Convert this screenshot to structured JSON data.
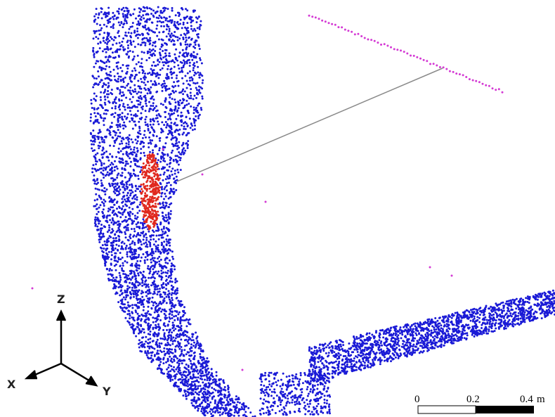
{
  "axes": {
    "z": "Z",
    "x": "X",
    "y": "Y"
  },
  "scale_bar": {
    "labels": [
      "0",
      "0.2",
      "0.4"
    ],
    "unit": "m"
  }
}
